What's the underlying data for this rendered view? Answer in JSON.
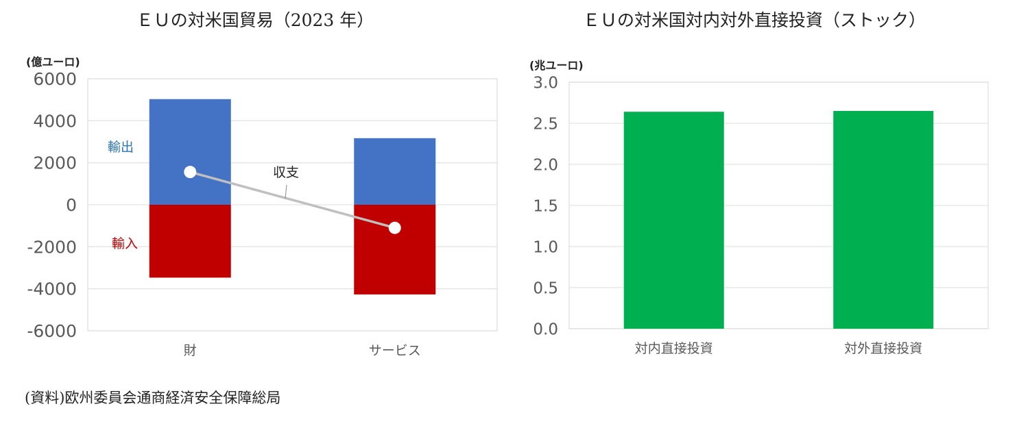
{
  "source": "(資料)欧州委員会通商経済安全保障総局",
  "chart_data": [
    {
      "type": "bar",
      "title": "ＥＵの対米国貿易（2023 年）",
      "unit_label": "(億ユーロ)",
      "categories": [
        "財",
        "サービス"
      ],
      "ylim": [
        -6000,
        6000
      ],
      "yticks": [
        "6000",
        "4000",
        "2000",
        "0",
        "-2000",
        "-4000",
        "-6000"
      ],
      "grid": true,
      "stacked": true,
      "series": [
        {
          "name": "輸出",
          "kind": "bar",
          "color": "#4472C4",
          "values": [
            5030,
            3170
          ]
        },
        {
          "name": "輸入",
          "kind": "bar",
          "color": "#C00000",
          "values": [
            -3470,
            -4270
          ]
        },
        {
          "name": "収支",
          "kind": "line",
          "color": "#BFBFBF",
          "values": [
            1560,
            -1100
          ]
        }
      ],
      "label_colors": {
        "輸出": "#2E75B6",
        "輸入": "#C00000",
        "収支": "#222222"
      }
    },
    {
      "type": "bar",
      "title": "ＥＵの対米国対内対外直接投資（ストック）",
      "unit_label": "(兆ユーロ)",
      "categories": [
        "対内直接投資",
        "対外直接投資"
      ],
      "ylim": [
        0,
        3.0
      ],
      "yticks": [
        "3.0",
        "2.5",
        "2.0",
        "1.5",
        "1.0",
        "0.5",
        "0.0"
      ],
      "grid": true,
      "series": [
        {
          "kind": "bar",
          "color": "#00B050",
          "values": [
            2.64,
            2.65
          ]
        }
      ]
    }
  ]
}
